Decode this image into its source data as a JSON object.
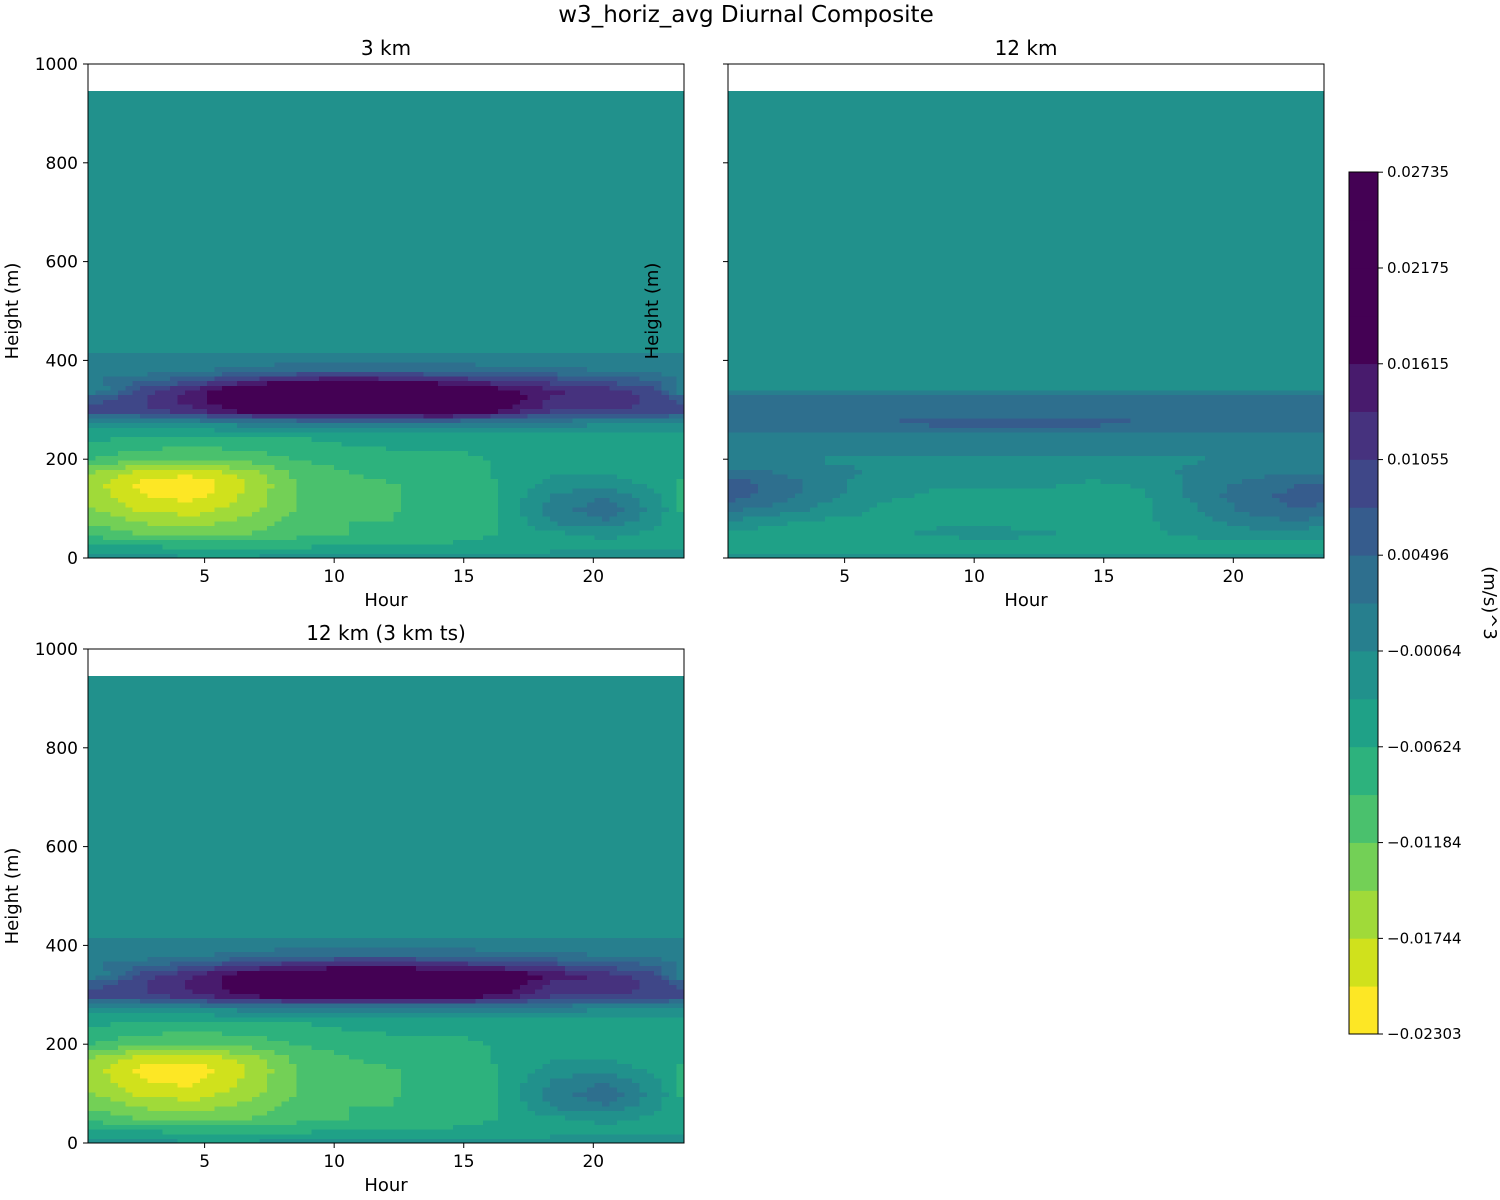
{
  "figure": {
    "title": "w3_horiz_avg Diurnal Composite"
  },
  "colorbar": {
    "label": "(m/s)^3",
    "tick_labels": [
      "−0.02303",
      "−0.01744",
      "−0.01184",
      "−0.00624",
      "−0.00064",
      "0.00496",
      "0.01055",
      "0.01615",
      "0.02175",
      "0.02735"
    ],
    "tick_values": [
      -0.02303,
      -0.01744,
      -0.01184,
      -0.00624,
      -0.00064,
      0.00496,
      0.01055,
      0.01615,
      0.02175,
      0.02735
    ],
    "levels_min": -0.02303,
    "levels_step": 0.0027995,
    "n_levels": 19,
    "colors": [
      "#fde725",
      "#d0e11c",
      "#a0da39",
      "#73d056",
      "#4ac16d",
      "#2db27d",
      "#1fa187",
      "#21918c",
      "#277f8e",
      "#2e6f8e",
      "#365c8d",
      "#3f4788",
      "#46327e",
      "#481b6d",
      "#440154",
      "#440154",
      "#440154",
      "#440154"
    ]
  },
  "chart_data": [
    {
      "type": "heatmap",
      "title": "3 km",
      "xlabel": "Hour",
      "ylabel": "Height (m)",
      "xlim": [
        0.5,
        23.5
      ],
      "ylim": [
        0,
        1000
      ],
      "x_ticks": [
        "5",
        "10",
        "15",
        "20"
      ],
      "x_tick_values": [
        5,
        10,
        15,
        20
      ],
      "y_ticks": [
        "0",
        "200",
        "400",
        "600",
        "800",
        "1000"
      ],
      "y_tick_values": [
        0,
        200,
        400,
        600,
        800,
        1000
      ],
      "y_ticklabels_shown": true,
      "x_hours": [
        0.5,
        2.5,
        4.5,
        6.5,
        8.5,
        10.5,
        12.5,
        14.5,
        16.5,
        18.5,
        20.5,
        22.5,
        23.5
      ],
      "y_heights": [
        0,
        20,
        50,
        75,
        100,
        125,
        150,
        175,
        200,
        250,
        275,
        300,
        325,
        340,
        360,
        380,
        420,
        600,
        945
      ],
      "z": [
        [
          -0.002,
          -0.002,
          -0.003,
          -0.003,
          -0.002,
          -0.002,
          -0.002,
          -0.002,
          -0.002,
          -0.002,
          -0.002,
          -0.002,
          -0.002
        ],
        [
          -0.004,
          -0.005,
          -0.006,
          -0.006,
          -0.006,
          -0.005,
          -0.005,
          -0.005,
          -0.005,
          -0.004,
          -0.004,
          -0.004,
          -0.004
        ],
        [
          -0.01,
          -0.012,
          -0.013,
          -0.012,
          -0.01,
          -0.009,
          -0.009,
          -0.008,
          -0.006,
          -0.004,
          -0.003,
          -0.004,
          -0.005
        ],
        [
          -0.012,
          -0.015,
          -0.016,
          -0.014,
          -0.011,
          -0.009,
          -0.009,
          -0.008,
          -0.006,
          0.0,
          0.002,
          -0.003,
          -0.006
        ],
        [
          -0.014,
          -0.018,
          -0.019,
          -0.016,
          -0.012,
          -0.01,
          -0.009,
          -0.008,
          -0.006,
          0.001,
          0.004,
          -0.002,
          -0.007
        ],
        [
          -0.015,
          -0.02,
          -0.021,
          -0.017,
          -0.012,
          -0.01,
          -0.009,
          -0.008,
          -0.006,
          0.0,
          0.002,
          -0.003,
          -0.007
        ],
        [
          -0.016,
          -0.021,
          -0.023,
          -0.018,
          -0.012,
          -0.01,
          -0.009,
          -0.008,
          -0.006,
          -0.002,
          -0.002,
          -0.004,
          -0.007
        ],
        [
          -0.014,
          -0.018,
          -0.019,
          -0.016,
          -0.011,
          -0.009,
          -0.008,
          -0.007,
          -0.006,
          -0.004,
          -0.004,
          -0.005,
          -0.006
        ],
        [
          -0.009,
          -0.011,
          -0.012,
          -0.011,
          -0.009,
          -0.008,
          -0.007,
          -0.007,
          -0.006,
          -0.005,
          -0.005,
          -0.005,
          -0.006
        ],
        [
          -0.005,
          -0.006,
          -0.006,
          -0.006,
          -0.006,
          -0.005,
          -0.005,
          -0.005,
          -0.005,
          -0.004,
          -0.004,
          -0.004,
          -0.004
        ],
        [
          -0.001,
          -0.001,
          0.0,
          0.001,
          0.002,
          0.002,
          0.002,
          0.002,
          0.001,
          0.001,
          0.0,
          0.0,
          -0.001
        ],
        [
          0.009,
          0.01,
          0.013,
          0.018,
          0.022,
          0.023,
          0.023,
          0.024,
          0.017,
          0.011,
          0.011,
          0.01,
          0.009
        ],
        [
          0.006,
          0.01,
          0.015,
          0.02,
          0.025,
          0.027,
          0.026,
          0.024,
          0.019,
          0.013,
          0.012,
          0.01,
          0.006
        ],
        [
          -0.002,
          0.009,
          0.014,
          0.022,
          0.028,
          0.029,
          0.028,
          0.022,
          0.017,
          0.014,
          0.012,
          0.008,
          -0.002
        ],
        [
          0.002,
          0.004,
          0.007,
          0.011,
          0.015,
          0.016,
          0.015,
          0.013,
          0.011,
          0.009,
          0.007,
          0.005,
          0.002
        ],
        [
          0.001,
          0.001,
          0.002,
          0.003,
          0.004,
          0.005,
          0.005,
          0.004,
          0.003,
          0.003,
          0.002,
          0.001,
          0.001
        ],
        [
          -0.001,
          -0.001,
          -0.001,
          -0.001,
          -0.001,
          -0.001,
          -0.001,
          -0.001,
          -0.001,
          -0.001,
          -0.001,
          -0.001,
          -0.001
        ],
        [
          -0.001,
          -0.001,
          -0.001,
          -0.001,
          -0.001,
          -0.001,
          -0.001,
          -0.001,
          -0.001,
          -0.001,
          -0.001,
          -0.001,
          -0.001
        ],
        [
          -0.001,
          -0.001,
          -0.001,
          -0.001,
          -0.001,
          -0.001,
          -0.001,
          -0.001,
          -0.001,
          -0.001,
          -0.001,
          -0.001,
          -0.001
        ]
      ]
    },
    {
      "type": "heatmap",
      "title": "12 km",
      "xlabel": "Hour",
      "ylabel": "Height (m)",
      "xlim": [
        0.5,
        23.5
      ],
      "ylim": [
        0,
        1000
      ],
      "x_ticks": [
        "5",
        "10",
        "15",
        "20"
      ],
      "x_tick_values": [
        5,
        10,
        15,
        20
      ],
      "y_ticks": [
        "0",
        "200",
        "400",
        "600",
        "800",
        "1000"
      ],
      "y_tick_values": [
        0,
        200,
        400,
        600,
        800,
        1000
      ],
      "y_ticklabels_shown": false,
      "x_hours": [
        0.5,
        2.5,
        4.5,
        6.5,
        8.5,
        10.5,
        12.5,
        14.5,
        16.5,
        18.5,
        20.5,
        22.5,
        23.5
      ],
      "y_heights": [
        0,
        20,
        50,
        75,
        100,
        125,
        150,
        175,
        200,
        250,
        275,
        300,
        325,
        340,
        360,
        380,
        420,
        600,
        945
      ],
      "z": [
        [
          -0.002,
          -0.002,
          -0.002,
          -0.002,
          -0.002,
          -0.002,
          -0.002,
          -0.002,
          -0.002,
          -0.002,
          -0.002,
          -0.002,
          -0.002
        ],
        [
          -0.005,
          -0.006,
          -0.006,
          -0.006,
          -0.006,
          -0.006,
          -0.006,
          -0.006,
          -0.006,
          -0.005,
          -0.005,
          -0.005,
          -0.005
        ],
        [
          -0.004,
          -0.005,
          -0.004,
          -0.004,
          -0.003,
          -0.002,
          -0.003,
          -0.004,
          -0.004,
          -0.003,
          -0.002,
          -0.002,
          -0.003
        ],
        [
          -0.001,
          -0.003,
          -0.004,
          -0.004,
          -0.004,
          -0.004,
          -0.005,
          -0.005,
          -0.004,
          -0.002,
          0.001,
          0.002,
          0.001
        ],
        [
          0.003,
          0.001,
          -0.002,
          -0.004,
          -0.004,
          -0.004,
          -0.005,
          -0.006,
          -0.004,
          -0.001,
          0.003,
          0.005,
          0.004
        ],
        [
          0.006,
          0.003,
          0.0,
          -0.003,
          -0.004,
          -0.004,
          -0.004,
          -0.005,
          -0.004,
          0.0,
          0.004,
          0.006,
          0.006
        ],
        [
          0.007,
          0.004,
          0.0,
          -0.002,
          -0.003,
          -0.003,
          -0.003,
          -0.004,
          -0.003,
          0.0,
          0.003,
          0.005,
          0.006
        ],
        [
          0.003,
          0.002,
          0.0,
          -0.001,
          -0.002,
          -0.002,
          -0.002,
          -0.002,
          -0.002,
          0.0,
          0.001,
          0.002,
          0.002
        ],
        [
          0.0,
          0.0,
          -0.001,
          -0.001,
          -0.001,
          -0.001,
          -0.001,
          -0.001,
          -0.001,
          -0.001,
          0.0,
          0.0,
          0.0
        ],
        [
          0.002,
          0.002,
          0.002,
          0.002,
          0.002,
          0.002,
          0.002,
          0.002,
          0.002,
          0.002,
          0.002,
          0.002,
          0.002
        ],
        [
          0.003,
          0.003,
          0.004,
          0.005,
          0.006,
          0.006,
          0.006,
          0.006,
          0.005,
          0.004,
          0.003,
          0.003,
          0.003
        ],
        [
          0.003,
          0.003,
          0.003,
          0.003,
          0.003,
          0.004,
          0.004,
          0.004,
          0.003,
          0.003,
          0.003,
          0.003,
          0.003
        ],
        [
          0.003,
          0.003,
          0.003,
          0.003,
          0.003,
          0.003,
          0.003,
          0.003,
          0.003,
          0.003,
          0.003,
          0.003,
          0.003
        ],
        [
          -0.001,
          -0.001,
          -0.001,
          -0.001,
          -0.001,
          -0.001,
          -0.001,
          -0.001,
          -0.001,
          -0.001,
          -0.001,
          -0.001,
          -0.001
        ],
        [
          -0.001,
          -0.001,
          -0.001,
          -0.001,
          -0.001,
          -0.001,
          -0.001,
          -0.001,
          -0.001,
          -0.001,
          -0.001,
          -0.001,
          -0.001
        ],
        [
          -0.001,
          -0.001,
          -0.001,
          -0.001,
          -0.001,
          -0.001,
          -0.001,
          -0.001,
          -0.001,
          -0.001,
          -0.001,
          -0.001,
          -0.001
        ],
        [
          -0.001,
          -0.001,
          -0.001,
          -0.001,
          -0.001,
          -0.001,
          -0.001,
          -0.001,
          -0.001,
          -0.001,
          -0.001,
          -0.001,
          -0.001
        ],
        [
          -0.001,
          -0.001,
          -0.001,
          -0.001,
          -0.001,
          -0.001,
          -0.001,
          -0.001,
          -0.001,
          -0.001,
          -0.001,
          -0.001,
          -0.001
        ],
        [
          -0.001,
          -0.001,
          -0.001,
          -0.001,
          -0.001,
          -0.001,
          -0.001,
          -0.001,
          -0.001,
          -0.001,
          -0.001,
          -0.001,
          -0.001
        ]
      ]
    },
    {
      "type": "heatmap",
      "title": "12 km (3 km ts)",
      "xlabel": "Hour",
      "ylabel": "Height (m)",
      "xlim": [
        0.5,
        23.5
      ],
      "ylim": [
        0,
        1000
      ],
      "x_ticks": [
        "5",
        "10",
        "15",
        "20"
      ],
      "x_tick_values": [
        5,
        10,
        15,
        20
      ],
      "y_ticks": [
        "0",
        "200",
        "400",
        "600",
        "800",
        "1000"
      ],
      "y_tick_values": [
        0,
        200,
        400,
        600,
        800,
        1000
      ],
      "y_ticklabels_shown": true,
      "x_hours": [
        0.5,
        2.5,
        4.5,
        6.5,
        8.5,
        10.5,
        12.5,
        14.5,
        16.5,
        18.5,
        20.5,
        22.5,
        23.5
      ],
      "y_heights": [
        0,
        20,
        50,
        75,
        100,
        125,
        150,
        175,
        200,
        250,
        275,
        300,
        325,
        340,
        360,
        380,
        420,
        600,
        945
      ],
      "z": [
        [
          -0.002,
          -0.002,
          -0.003,
          -0.003,
          -0.002,
          -0.002,
          -0.002,
          -0.002,
          -0.002,
          -0.002,
          -0.002,
          -0.002,
          -0.002
        ],
        [
          -0.004,
          -0.005,
          -0.006,
          -0.006,
          -0.006,
          -0.005,
          -0.005,
          -0.005,
          -0.005,
          -0.004,
          -0.004,
          -0.004,
          -0.004
        ],
        [
          -0.01,
          -0.012,
          -0.013,
          -0.012,
          -0.01,
          -0.009,
          -0.009,
          -0.008,
          -0.006,
          -0.004,
          -0.003,
          -0.004,
          -0.005
        ],
        [
          -0.012,
          -0.015,
          -0.016,
          -0.014,
          -0.011,
          -0.009,
          -0.009,
          -0.008,
          -0.006,
          0.0,
          0.002,
          -0.003,
          -0.006
        ],
        [
          -0.014,
          -0.018,
          -0.019,
          -0.016,
          -0.012,
          -0.01,
          -0.009,
          -0.008,
          -0.006,
          0.001,
          0.004,
          -0.002,
          -0.007
        ],
        [
          -0.015,
          -0.02,
          -0.021,
          -0.017,
          -0.012,
          -0.01,
          -0.009,
          -0.008,
          -0.006,
          0.0,
          0.002,
          -0.003,
          -0.007
        ],
        [
          -0.016,
          -0.021,
          -0.022,
          -0.018,
          -0.012,
          -0.01,
          -0.009,
          -0.008,
          -0.006,
          -0.002,
          -0.002,
          -0.004,
          -0.007
        ],
        [
          -0.014,
          -0.018,
          -0.019,
          -0.016,
          -0.011,
          -0.009,
          -0.008,
          -0.007,
          -0.006,
          -0.004,
          -0.004,
          -0.005,
          -0.006
        ],
        [
          -0.009,
          -0.011,
          -0.012,
          -0.011,
          -0.009,
          -0.008,
          -0.007,
          -0.007,
          -0.006,
          -0.005,
          -0.005,
          -0.005,
          -0.006
        ],
        [
          -0.005,
          -0.006,
          -0.006,
          -0.006,
          -0.006,
          -0.005,
          -0.005,
          -0.005,
          -0.005,
          -0.004,
          -0.004,
          -0.004,
          -0.004
        ],
        [
          -0.001,
          -0.001,
          0.0,
          0.001,
          0.002,
          0.002,
          0.002,
          0.002,
          0.001,
          0.001,
          0.0,
          0.0,
          -0.001
        ],
        [
          0.009,
          0.01,
          0.013,
          0.017,
          0.019,
          0.02,
          0.02,
          0.021,
          0.016,
          0.011,
          0.011,
          0.01,
          0.009
        ],
        [
          0.006,
          0.01,
          0.014,
          0.018,
          0.021,
          0.022,
          0.022,
          0.023,
          0.019,
          0.013,
          0.012,
          0.01,
          0.006
        ],
        [
          -0.002,
          0.009,
          0.013,
          0.019,
          0.022,
          0.023,
          0.023,
          0.022,
          0.02,
          0.016,
          0.012,
          0.008,
          -0.002
        ],
        [
          0.002,
          0.004,
          0.007,
          0.01,
          0.013,
          0.014,
          0.014,
          0.013,
          0.011,
          0.009,
          0.007,
          0.005,
          0.002
        ],
        [
          0.001,
          0.001,
          0.002,
          0.003,
          0.004,
          0.005,
          0.005,
          0.004,
          0.003,
          0.003,
          0.002,
          0.001,
          0.001
        ],
        [
          -0.001,
          -0.001,
          -0.001,
          -0.001,
          -0.001,
          -0.001,
          -0.001,
          -0.001,
          -0.001,
          -0.001,
          -0.001,
          -0.001,
          -0.001
        ],
        [
          -0.001,
          -0.001,
          -0.001,
          -0.001,
          -0.001,
          -0.001,
          -0.001,
          -0.001,
          -0.001,
          -0.001,
          -0.001,
          -0.001,
          -0.001
        ],
        [
          -0.001,
          -0.001,
          -0.001,
          -0.001,
          -0.001,
          -0.001,
          -0.001,
          -0.001,
          -0.001,
          -0.001,
          -0.001,
          -0.001,
          -0.001
        ]
      ]
    }
  ]
}
